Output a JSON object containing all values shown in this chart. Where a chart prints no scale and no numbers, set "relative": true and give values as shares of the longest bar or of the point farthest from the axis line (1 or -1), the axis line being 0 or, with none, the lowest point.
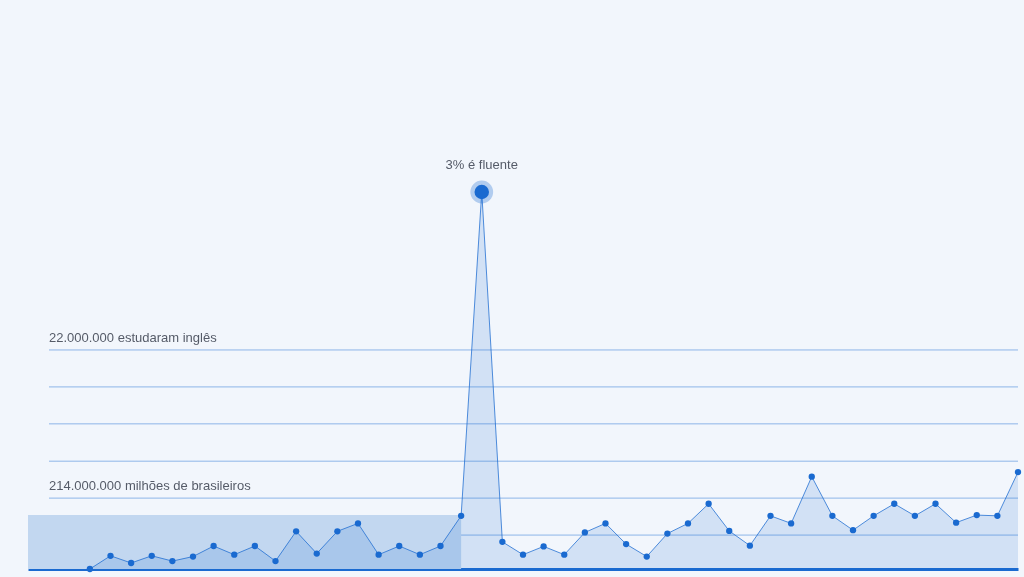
{
  "chart_data": {
    "type": "area",
    "relative": true,
    "marker": "circle",
    "line_style": "solid",
    "categories": [
      null,
      null,
      null,
      null,
      null,
      null,
      null,
      null,
      null,
      null,
      null,
      null,
      null,
      null,
      null,
      null,
      null,
      null,
      null,
      null,
      null,
      null,
      null,
      null,
      null,
      null,
      null,
      null,
      null,
      null,
      null,
      null,
      null,
      null,
      null,
      null,
      null,
      null,
      null,
      null,
      null,
      null,
      null,
      null,
      null,
      null,
      null,
      null,
      null
    ],
    "series": [
      {
        "type": "area",
        "color": "#c2d7f0",
        "marker": "none",
        "line_style": "none",
        "values": [
          0.143,
          0.143,
          0.143,
          0.143,
          0.143,
          0.143,
          0.143,
          0.143,
          0.143,
          0.143,
          0.143,
          0.143,
          0.143,
          0.143,
          0.143,
          0.143,
          0.143,
          0.143,
          0.143,
          0.143,
          0.143,
          0.143,
          null,
          null,
          null,
          null,
          null,
          null,
          null,
          null,
          null,
          null,
          null,
          null,
          null,
          null,
          null,
          null,
          null,
          null,
          null,
          null,
          null,
          null,
          null,
          null,
          null,
          null,
          null
        ]
      },
      {
        "color": "#1a6ad0",
        "values": [
          null,
          null,
          null,
          0,
          0.035,
          0.016,
          0.035,
          0.021,
          0.033,
          0.061,
          0.038,
          0.061,
          0.021,
          0.1,
          0.041,
          0.1,
          0.121,
          0.038,
          0.061,
          0.038,
          0.061,
          0.141,
          1,
          0.072,
          0.038,
          0.06,
          0.038,
          0.097,
          0.121,
          0.066,
          0.033,
          0.094,
          0.121,
          0.173,
          0.101,
          0.062,
          0.141,
          0.121,
          0.245,
          0.141,
          0.103,
          0.141,
          0.173,
          0.141,
          0.173,
          0.123,
          0.143,
          0.141,
          0.257
        ]
      }
    ],
    "ref_lines": [
      {
        "axis": "y",
        "value": 0.581,
        "label": "22.000.000 estudaram inglês",
        "color": "#8db5e8"
      },
      {
        "axis": "y",
        "value": 0.483,
        "color": "#8db5e8"
      },
      {
        "axis": "y",
        "value": 0.385,
        "color": "#8db5e8"
      },
      {
        "axis": "y",
        "value": 0.286,
        "color": "#8db5e8"
      },
      {
        "axis": "y",
        "value": 0.188,
        "label": "214.000.000 milhões de brasileiros",
        "color": "#8db5e8"
      },
      {
        "axis": "y",
        "value": 0.09,
        "color": "#8db5e8"
      }
    ],
    "annotations": [
      {
        "text": "3% é fluente",
        "y": 1
      }
    ]
  }
}
